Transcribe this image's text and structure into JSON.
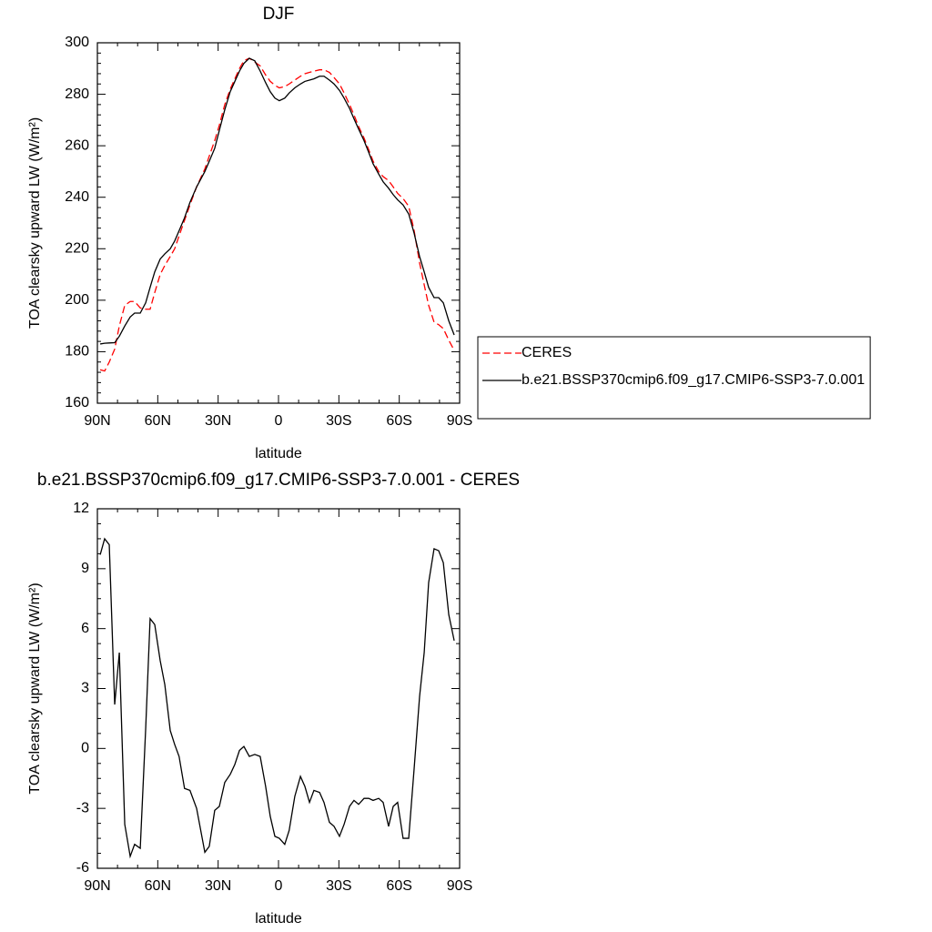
{
  "chart_data": [
    {
      "type": "line",
      "title": "DJF",
      "xlabel": "latitude",
      "ylabel": "TOA clearsky upward LW (W/m²)",
      "x": [
        88.6,
        86.4,
        84.1,
        81.4,
        79.1,
        76.4,
        73.7,
        71.5,
        68.7,
        66.0,
        63.8,
        61.5,
        58.8,
        56.5,
        53.8,
        51.6,
        49.4,
        46.7,
        44.0,
        40.7,
        36.6,
        34.4,
        31.7,
        29.4,
        26.7,
        24.0,
        21.7,
        19.4,
        17.2,
        14.5,
        11.8,
        9.1,
        6.4,
        4.1,
        1.8,
        -0.4,
        -3.1,
        -5.3,
        -8.1,
        -10.9,
        -13.1,
        -15.4,
        -17.6,
        -20.4,
        -22.6,
        -25.3,
        -27.6,
        -30.3,
        -32.6,
        -35.3,
        -37.5,
        -39.8,
        -42.5,
        -44.8,
        -47.0,
        -49.8,
        -52.0,
        -54.7,
        -57.0,
        -59.2,
        -61.9,
        -64.7,
        -67.4,
        -70.1,
        -72.4,
        -74.6,
        -77.3,
        -79.6,
        -81.9,
        -84.6,
        -87.3
      ],
      "xlim": [
        90,
        -90
      ],
      "xticks": [
        {
          "value": 90,
          "label": "90N"
        },
        {
          "value": 60,
          "label": "60N"
        },
        {
          "value": 30,
          "label": "30N"
        },
        0,
        {
          "value": -30,
          "label": "30S"
        },
        {
          "value": -60,
          "label": "60S"
        },
        {
          "value": -90,
          "label": "90S"
        }
      ],
      "ylim": [
        160,
        300
      ],
      "yticks": [
        160,
        180,
        200,
        220,
        240,
        260,
        280,
        300
      ],
      "legend": "right",
      "series": [
        {
          "name": "CERES",
          "color": "#ff0000",
          "linestyle": "dashed",
          "values": [
            173,
            172.5,
            176,
            181,
            190,
            198,
            199.5,
            199.5,
            197,
            196.5,
            196.5,
            203,
            210,
            213.5,
            217,
            220,
            225,
            231,
            237,
            244,
            251,
            256,
            262,
            268,
            276,
            282,
            286,
            290,
            293,
            294,
            292.5,
            291,
            287.5,
            285,
            283.5,
            282.5,
            283,
            284,
            285.5,
            287,
            288,
            288.5,
            289,
            289.5,
            289.5,
            288.5,
            286.5,
            284,
            280.5,
            276,
            272,
            267.5,
            263,
            258.5,
            254,
            250,
            248,
            246.5,
            244,
            241.5,
            239.5,
            236.5,
            227,
            214.5,
            206,
            198,
            191.5,
            190.5,
            189,
            184.5,
            180.5
          ]
        },
        {
          "name": "b.e21.BSSP370cmip6.f09_g17.CMIP6-SSP3-7.0.001",
          "color": "#000000",
          "linestyle": "solid",
          "values": [
            183,
            183.3,
            183.4,
            183.5,
            186,
            190,
            193.5,
            195,
            195,
            199,
            205,
            211,
            216,
            218,
            220,
            223,
            227,
            232,
            238,
            244,
            250,
            254,
            259,
            266,
            274,
            281,
            285,
            289,
            292,
            294,
            293,
            289,
            284.5,
            281,
            278.5,
            277.5,
            278.5,
            280.5,
            282.5,
            284,
            285,
            285.5,
            286,
            287,
            287,
            285.5,
            284,
            281.5,
            278.5,
            274.5,
            270.5,
            266.5,
            262,
            257.5,
            253,
            249,
            246,
            243.5,
            241,
            239,
            237,
            233.5,
            226,
            217,
            211,
            205,
            201,
            201,
            199,
            192,
            186.5
          ]
        }
      ]
    },
    {
      "type": "line",
      "title": "b.e21.BSSP370cmip6.f09_g17.CMIP6-SSP3-7.0.001 - CERES",
      "xlabel": "latitude",
      "ylabel": "TOA clearsky upward LW (W/m²)",
      "x": [
        88.6,
        86.4,
        84.1,
        81.4,
        79.1,
        76.4,
        73.7,
        71.5,
        68.7,
        66.0,
        63.8,
        61.5,
        58.8,
        56.5,
        53.8,
        51.6,
        49.4,
        46.7,
        44.0,
        40.7,
        36.6,
        34.4,
        31.7,
        29.4,
        26.7,
        24.0,
        21.7,
        19.4,
        17.2,
        14.5,
        11.8,
        9.1,
        6.4,
        4.1,
        1.8,
        -0.4,
        -3.1,
        -5.3,
        -8.1,
        -10.9,
        -13.1,
        -15.4,
        -17.6,
        -20.4,
        -22.6,
        -25.3,
        -27.6,
        -30.3,
        -32.6,
        -35.3,
        -37.5,
        -39.8,
        -42.5,
        -44.8,
        -47.0,
        -49.8,
        -52.0,
        -54.7,
        -57.0,
        -59.2,
        -61.9,
        -64.7,
        -67.4,
        -70.1,
        -72.4,
        -74.6,
        -77.3,
        -79.6,
        -81.9,
        -84.6,
        -87.3
      ],
      "xlim": [
        90,
        -90
      ],
      "xticks": [
        {
          "value": 90,
          "label": "90N"
        },
        {
          "value": 60,
          "label": "60N"
        },
        {
          "value": 30,
          "label": "30N"
        },
        0,
        {
          "value": -30,
          "label": "30S"
        },
        {
          "value": -60,
          "label": "60S"
        },
        {
          "value": -90,
          "label": "90S"
        }
      ],
      "ylim": [
        -6,
        12
      ],
      "yticks": [
        -6,
        -3,
        0,
        3,
        6,
        9,
        12
      ],
      "series": [
        {
          "color": "#000000",
          "linestyle": "solid",
          "values": [
            9.7,
            10.5,
            10.2,
            2.2,
            4.8,
            -3.8,
            -5.4,
            -4.8,
            -5.0,
            1.0,
            6.5,
            6.2,
            4.4,
            3.2,
            0.9,
            0.2,
            -0.4,
            -2.0,
            -2.1,
            -3.0,
            -5.2,
            -4.9,
            -3.1,
            -2.9,
            -1.7,
            -1.3,
            -0.8,
            -0.1,
            0.1,
            -0.4,
            -0.3,
            -0.4,
            -1.9,
            -3.4,
            -4.4,
            -4.5,
            -4.8,
            -4.1,
            -2.4,
            -1.4,
            -1.9,
            -2.7,
            -2.1,
            -2.2,
            -2.7,
            -3.7,
            -3.9,
            -4.4,
            -3.8,
            -2.9,
            -2.6,
            -2.8,
            -2.5,
            -2.5,
            -2.6,
            -2.5,
            -2.7,
            -3.9,
            -2.9,
            -2.7,
            -4.5,
            -4.5,
            -1.0,
            2.6,
            4.8,
            8.3,
            10.0,
            9.9,
            9.3,
            6.7,
            5.4
          ]
        }
      ]
    }
  ]
}
